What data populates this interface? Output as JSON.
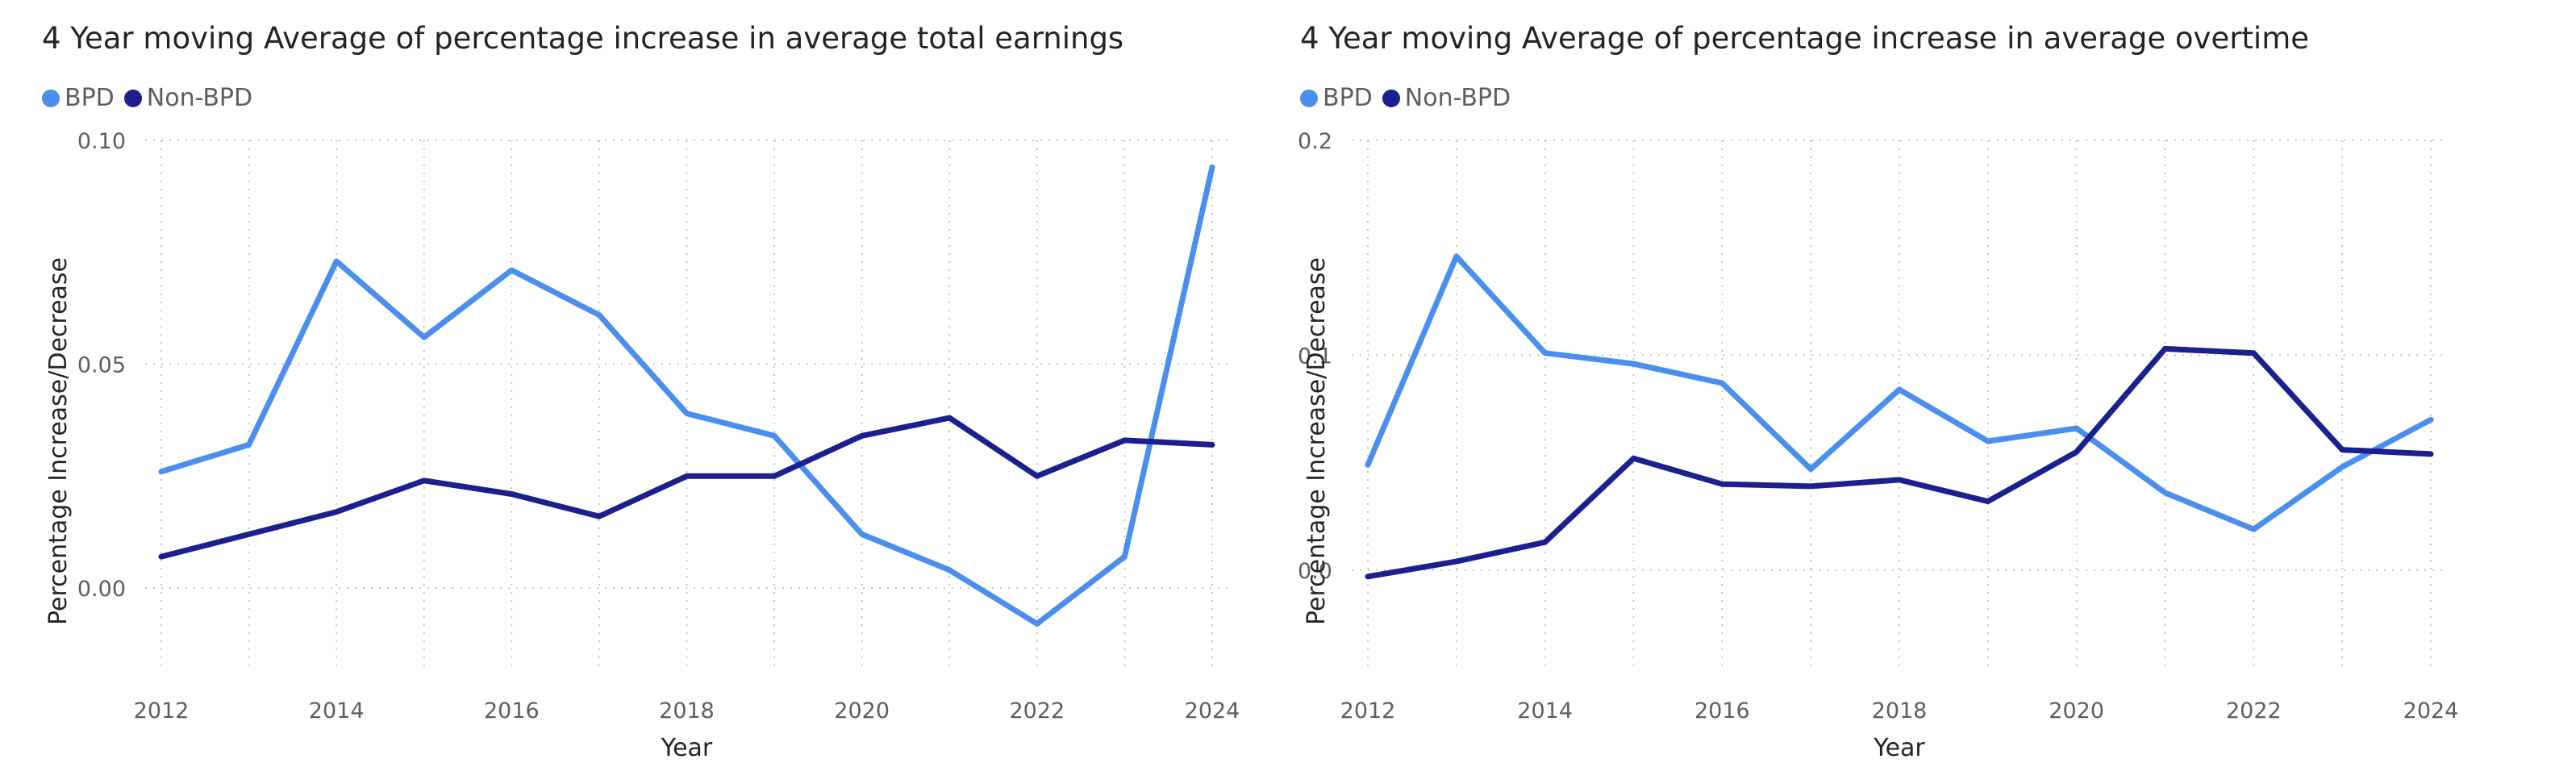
{
  "colors": {
    "bpd": "#4A8EF0",
    "non_bpd": "#1C208F",
    "grid": "#c8c6c4",
    "tick_text": "#605e5c",
    "axis_title": "#252423"
  },
  "chart_data": [
    {
      "type": "line",
      "title": "4 Year moving Average of percentage increase in average total earnings",
      "xlabel": "Year",
      "ylabel": "Percentage Increase/Decrease",
      "x": [
        2012,
        2013,
        2014,
        2015,
        2016,
        2017,
        2018,
        2019,
        2020,
        2021,
        2022,
        2023,
        2024
      ],
      "x_ticks": [
        "2012",
        "2014",
        "2016",
        "2018",
        "2020",
        "2022",
        "2024"
      ],
      "y_ticks": [
        "0.00",
        "0.05",
        "0.10"
      ],
      "ylim": [
        -0.02,
        0.1
      ],
      "grid": true,
      "legend_position": "top-left",
      "series": [
        {
          "name": "BPD",
          "color": "#4A8EF0",
          "values": [
            0.026,
            0.032,
            0.073,
            0.056,
            0.071,
            0.061,
            0.039,
            0.034,
            0.012,
            0.004,
            -0.008,
            0.007,
            0.094
          ]
        },
        {
          "name": "Non-BPD",
          "color": "#1C208F",
          "values": [
            0.007,
            0.012,
            0.017,
            0.024,
            0.021,
            0.016,
            0.025,
            0.025,
            0.034,
            0.038,
            0.025,
            0.033,
            0.032
          ]
        }
      ]
    },
    {
      "type": "line",
      "title": "4 Year moving Average of percentage increase in average overtime",
      "xlabel": "Year",
      "ylabel": "Percentage Increase/Decrease",
      "x": [
        2012,
        2013,
        2014,
        2015,
        2016,
        2017,
        2018,
        2019,
        2020,
        2021,
        2022,
        2023,
        2024
      ],
      "x_ticks": [
        "2012",
        "2014",
        "2016",
        "2018",
        "2020",
        "2022",
        "2024"
      ],
      "y_ticks": [
        "0.0",
        "0.1",
        "0.2"
      ],
      "ylim": [
        -0.05,
        0.2
      ],
      "grid": true,
      "legend_position": "top-left",
      "series": [
        {
          "name": "BPD",
          "color": "#4A8EF0",
          "values": [
            0.049,
            0.146,
            0.101,
            0.096,
            0.087,
            0.047,
            0.084,
            0.06,
            0.066,
            0.036,
            0.019,
            0.048,
            0.07
          ]
        },
        {
          "name": "Non-BPD",
          "color": "#1C208F",
          "values": [
            -0.003,
            0.004,
            0.013,
            0.052,
            0.04,
            0.039,
            0.042,
            0.032,
            0.055,
            0.103,
            0.101,
            0.056,
            0.054
          ]
        }
      ]
    }
  ]
}
